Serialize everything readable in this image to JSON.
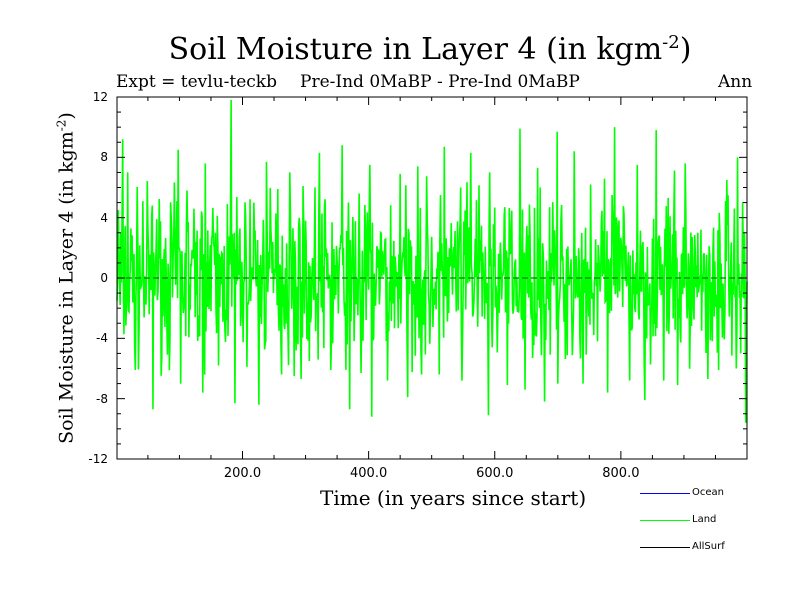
{
  "title": "Soil Moisture in Layer 4 (in kgm",
  "title_exp": "-2",
  "title_close": ")",
  "expt_label": "Expt = tevlu-teckb",
  "subtitle": "Pre-Ind 0MaBP - Pre-Ind 0MaBP",
  "period": "Ann",
  "colors": {
    "ocean": "#0000ff",
    "land": "#00ff00",
    "allsurf": "#000000",
    "zero_line": "#008000"
  },
  "chart_data": {
    "type": "line",
    "title": "Soil Moisture in Layer 4 (in kgm^-2)",
    "xlabel": "Time (in years since start)",
    "ylabel": "Soil Moisture in Layer 4 (in kgm^-2)",
    "xlim": [
      1,
      1000
    ],
    "ylim": [
      -12,
      12
    ],
    "xticks": [
      200,
      400,
      600,
      800
    ],
    "xtick_labels": [
      "200.0",
      "400.0",
      "600.0",
      "800.0"
    ],
    "yticks": [
      12,
      8,
      4,
      0,
      -4,
      -8,
      -12
    ],
    "ytick_labels": [
      "12",
      "8",
      "4",
      "0",
      "-4",
      "-8",
      "-12"
    ],
    "legend": [
      "Ocean",
      "Land",
      "AllSurf"
    ],
    "legend_position": "bottom-right",
    "series": [
      {
        "name": "Land",
        "description": "approximate annual anomaly series (noisy, ~zero mean, range about -9.2 to 11.8)",
        "peaks": [
          [
            3,
            4.5
          ],
          [
            10,
            9.2
          ],
          [
            18,
            7.0
          ],
          [
            42,
            5.1
          ],
          [
            64,
            3.9
          ],
          [
            98,
            8.5
          ],
          [
            112,
            5.8
          ],
          [
            141,
            7.6
          ],
          [
            176,
            4.9
          ],
          [
            182,
            11.8
          ],
          [
            218,
            5.0
          ],
          [
            238,
            7.7
          ],
          [
            256,
            5.9
          ],
          [
            275,
            7.0
          ],
          [
            300,
            3.8
          ],
          [
            322,
            8.3
          ],
          [
            358,
            8.8
          ],
          [
            385,
            5.6
          ],
          [
            402,
            7.5
          ],
          [
            450,
            6.9
          ],
          [
            478,
            7.4
          ],
          [
            520,
            8.7
          ],
          [
            546,
            6.0
          ],
          [
            562,
            8.3
          ],
          [
            592,
            7.0
          ],
          [
            640,
            9.9
          ],
          [
            668,
            7.3
          ],
          [
            699,
            9.7
          ],
          [
            726,
            8.4
          ],
          [
            752,
            6.2
          ],
          [
            790,
            10.0
          ],
          [
            826,
            7.5
          ],
          [
            856,
            9.8
          ],
          [
            902,
            7.6
          ],
          [
            938,
            7.0
          ],
          [
            968,
            6.5
          ],
          [
            985,
            8.0
          ]
        ],
        "troughs": [
          [
            6,
            -1.8
          ],
          [
            30,
            -6.1
          ],
          [
            58,
            -8.7
          ],
          [
            72,
            -5.3
          ],
          [
            102,
            -7.0
          ],
          [
            137,
            -7.6
          ],
          [
            162,
            -5.8
          ],
          [
            188,
            -8.3
          ],
          [
            226,
            -8.4
          ],
          [
            262,
            -6.4
          ],
          [
            282,
            -6.5
          ],
          [
            306,
            -5.5
          ],
          [
            340,
            -6.1
          ],
          [
            370,
            -8.7
          ],
          [
            388,
            -6.3
          ],
          [
            405,
            -9.2
          ],
          [
            430,
            -6.8
          ],
          [
            462,
            -7.9
          ],
          [
            484,
            -6.4
          ],
          [
            512,
            -6.4
          ],
          [
            548,
            -6.8
          ],
          [
            590,
            -9.1
          ],
          [
            620,
            -7.1
          ],
          [
            648,
            -7.4
          ],
          [
            679,
            -8.2
          ],
          [
            700,
            -7.0
          ],
          [
            740,
            -7.0
          ],
          [
            779,
            -7.6
          ],
          [
            814,
            -6.8
          ],
          [
            838,
            -8.1
          ],
          [
            868,
            -6.8
          ],
          [
            890,
            -7.1
          ],
          [
            938,
            -6.7
          ],
          [
            955,
            -6.1
          ],
          [
            990,
            -5.0
          ],
          [
            998,
            -9.6
          ]
        ],
        "values": []
      },
      {
        "name": "Ocean",
        "values": []
      },
      {
        "name": "AllSurf",
        "values": []
      }
    ]
  }
}
